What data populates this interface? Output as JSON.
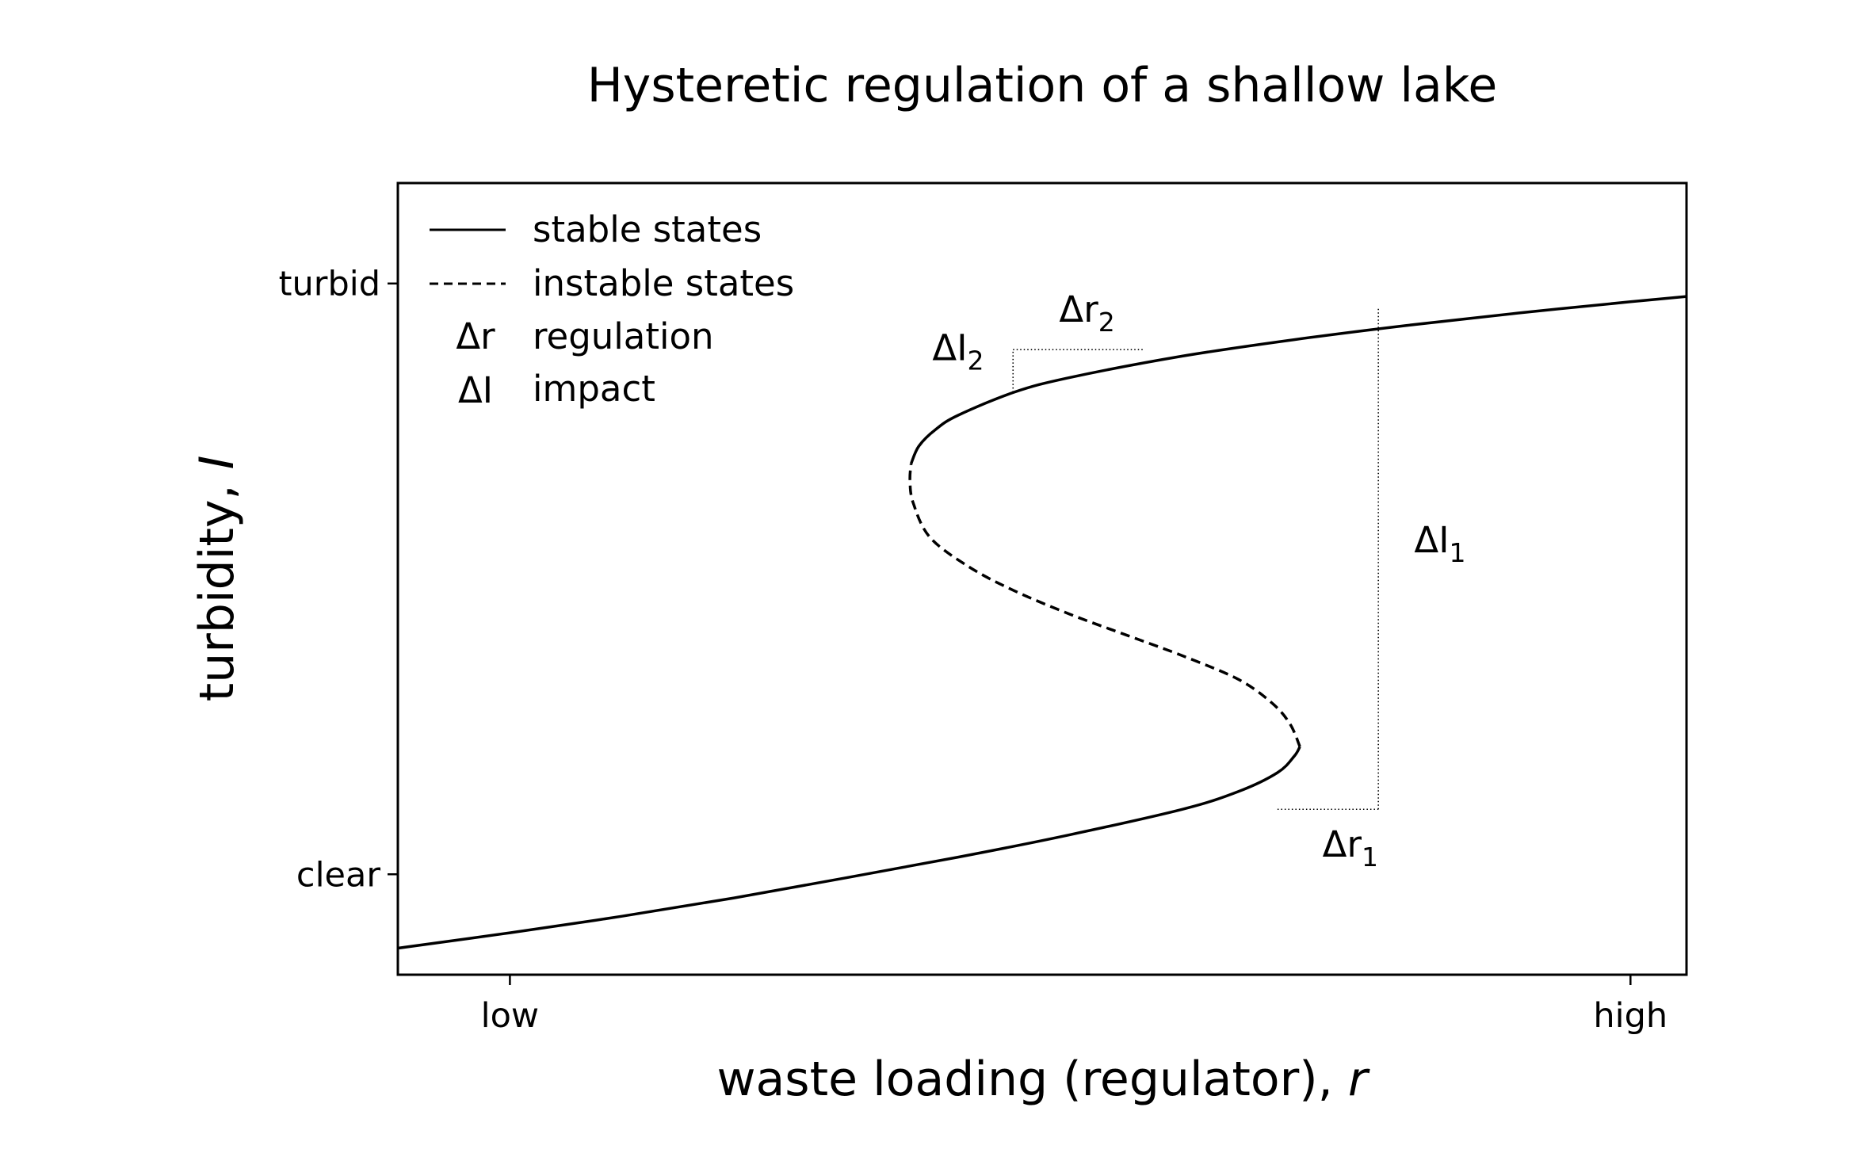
{
  "chart_data": {
    "type": "line",
    "title": "Hysteretic regulation of a shallow lake",
    "xlabel": "waste loading (regulator), ",
    "xlabel_var": "r",
    "ylabel": "turbidity, ",
    "ylabel_var": "I",
    "x_ticks": [
      {
        "value": 0.0,
        "label": "low"
      },
      {
        "value": 1.0,
        "label": "high"
      }
    ],
    "y_ticks": [
      {
        "value": 0.0,
        "label": "clear"
      },
      {
        "value": 1.0,
        "label": "turbid"
      }
    ],
    "xlim": [
      -0.1,
      1.05
    ],
    "ylim": [
      -0.17,
      1.17
    ],
    "grid": false,
    "legend_position": "top-left",
    "legend": [
      {
        "key": "line-solid",
        "label": "stable states"
      },
      {
        "key": "line-dashed",
        "label": "instable states"
      },
      {
        "key": "Δr",
        "label": "regulation"
      },
      {
        "key": "ΔI",
        "label": "impact"
      }
    ],
    "series": [
      {
        "style": "solid",
        "points": [
          [
            -0.1,
            -0.125
          ],
          [
            0.0,
            -0.099
          ],
          [
            0.1,
            -0.071
          ],
          [
            0.2,
            -0.04
          ],
          [
            0.3,
            -0.006
          ],
          [
            0.4,
            0.029
          ],
          [
            0.5,
            0.067
          ],
          [
            0.6,
            0.11
          ],
          [
            0.65,
            0.14
          ],
          [
            0.685,
            0.172
          ],
          [
            0.7,
            0.2
          ],
          [
            0.705,
            0.216
          ]
        ]
      },
      {
        "style": "dashed",
        "points": [
          [
            0.705,
            0.216
          ],
          [
            0.696,
            0.255
          ],
          [
            0.68,
            0.29
          ],
          [
            0.65,
            0.33
          ],
          [
            0.6,
            0.37
          ],
          [
            0.55,
            0.405
          ],
          [
            0.5,
            0.44
          ],
          [
            0.45,
            0.48
          ],
          [
            0.41,
            0.52
          ],
          [
            0.375,
            0.57
          ],
          [
            0.36,
            0.628
          ],
          [
            0.357,
            0.666
          ],
          [
            0.358,
            0.695
          ]
        ]
      },
      {
        "style": "solid",
        "points": [
          [
            0.358,
            0.695
          ],
          [
            0.365,
            0.725
          ],
          [
            0.38,
            0.753
          ],
          [
            0.4,
            0.777
          ],
          [
            0.45,
            0.816
          ],
          [
            0.5,
            0.841
          ],
          [
            0.6,
            0.877
          ],
          [
            0.7,
            0.905
          ],
          [
            0.8,
            0.929
          ],
          [
            0.9,
            0.95
          ],
          [
            1.0,
            0.969
          ],
          [
            1.05,
            0.978
          ]
        ]
      }
    ],
    "guides": [
      {
        "from": [
          0.685,
          0.11
        ],
        "to": [
          0.775,
          0.11
        ]
      },
      {
        "from": [
          0.775,
          0.11
        ],
        "to": [
          0.775,
          0.958
        ]
      },
      {
        "from": [
          0.449,
          0.816
        ],
        "to": [
          0.449,
          0.888
        ]
      },
      {
        "from": [
          0.449,
          0.888
        ],
        "to": [
          0.565,
          0.888
        ]
      }
    ],
    "annotations": [
      {
        "text": "Δr",
        "sub": "1",
        "x": 0.75,
        "y": 0.03
      },
      {
        "text": "ΔI",
        "sub": "1",
        "x": 0.83,
        "y": 0.545
      },
      {
        "text": "Δr",
        "sub": "2",
        "x": 0.515,
        "y": 0.935
      },
      {
        "text": "ΔI",
        "sub": "2",
        "x": 0.4,
        "y": 0.87
      }
    ]
  }
}
